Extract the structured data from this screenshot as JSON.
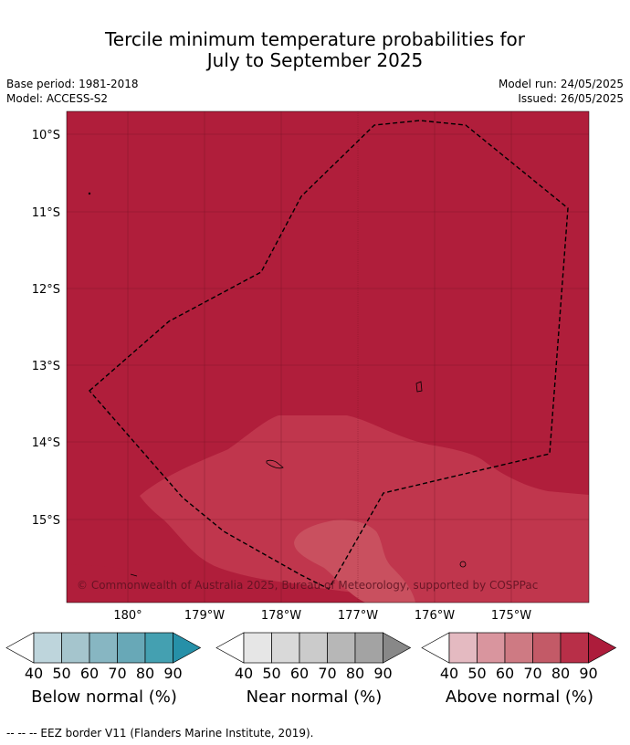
{
  "title": {
    "line1": "Tercile minimum temperature probabilities for",
    "line2": "July to September 2025"
  },
  "meta": {
    "base_period": "Base period: 1981-2018",
    "model": "Model: ACCESS-S2",
    "model_run": "Model run: 24/05/2025",
    "issued": "Issued: 26/05/2025"
  },
  "map": {
    "lat_labels": [
      "10°S",
      "11°S",
      "12°S",
      "13°S",
      "14°S",
      "15°S"
    ],
    "lon_labels": [
      "180°",
      "179°W",
      "178°W",
      "177°W",
      "176°W",
      "175°W"
    ],
    "copyright": "© Commonwealth of Australia 2025, Bureau of Meteorology, supported by COSPPac",
    "colors": {
      "above_80_90": "#b01e3b",
      "above_70_80": "#c0364d",
      "above_60_70": "#c9505f",
      "eez_border": "#000000"
    }
  },
  "colorbars": [
    {
      "label": "Below normal (%)",
      "ticks": [
        "40",
        "50",
        "60",
        "70",
        "80",
        "90"
      ],
      "colors": [
        "#bed5dc",
        "#a5c5cd",
        "#87b6c2",
        "#68a8b7",
        "#44a0b1",
        "#2690a8"
      ]
    },
    {
      "label": "Near normal (%)",
      "ticks": [
        "40",
        "50",
        "60",
        "70",
        "80",
        "90"
      ],
      "colors": [
        "#e6e6e6",
        "#d9d9d9",
        "#cbcbcb",
        "#b7b7b7",
        "#a3a3a3",
        "#888888"
      ]
    },
    {
      "label": "Above normal (%)",
      "ticks": [
        "40",
        "50",
        "60",
        "70",
        "80",
        "90"
      ],
      "colors": [
        "#e4bac1",
        "#d9959e",
        "#ce7a83",
        "#c35a67",
        "#b82f48",
        "#ad1c3b"
      ]
    }
  ],
  "footnote": "--  --  -- EEZ border V11 (Flanders Marine Institute, 2019)."
}
